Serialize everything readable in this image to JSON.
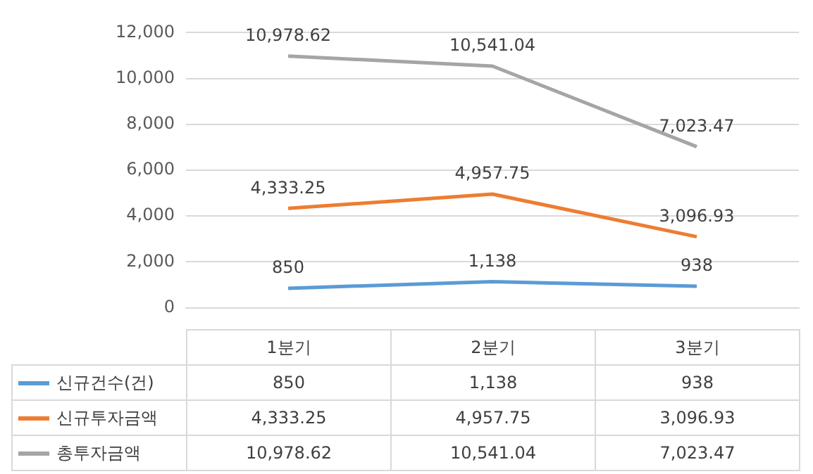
{
  "chart_data": {
    "type": "line",
    "categories": [
      "1분기",
      "2분기",
      "3분기"
    ],
    "series": [
      {
        "name": "신규건수(건)",
        "color": "#5b9bd5",
        "values": [
          850,
          1138,
          938
        ],
        "value_labels": [
          "850",
          "1,138",
          "938"
        ]
      },
      {
        "name": "신규투자금액",
        "color": "#ed7d31",
        "values": [
          4333.25,
          4957.75,
          3096.93
        ],
        "value_labels": [
          "4,333.25",
          "4,957.75",
          "3,096.93"
        ]
      },
      {
        "name": "총투자금액",
        "color": "#a5a5a5",
        "values": [
          10978.62,
          10541.04,
          7023.47
        ],
        "value_labels": [
          "10,978.62",
          "10,541.04",
          "7,023.47"
        ]
      }
    ],
    "ylim": [
      0,
      12000
    ],
    "yticks": [
      0,
      {
        "value": 2000,
        "label": "2,000"
      },
      {
        "value": 4000,
        "label": "4,000"
      },
      {
        "value": 6000,
        "label": "6,000"
      },
      {
        "value": 8000,
        "label": "8,000"
      },
      {
        "value": 10000,
        "label": "10,000"
      },
      {
        "value": 12000,
        "label": "12,000"
      }
    ],
    "grid": "y",
    "legend": "bottom",
    "marker": "none",
    "line_style": "solid"
  }
}
